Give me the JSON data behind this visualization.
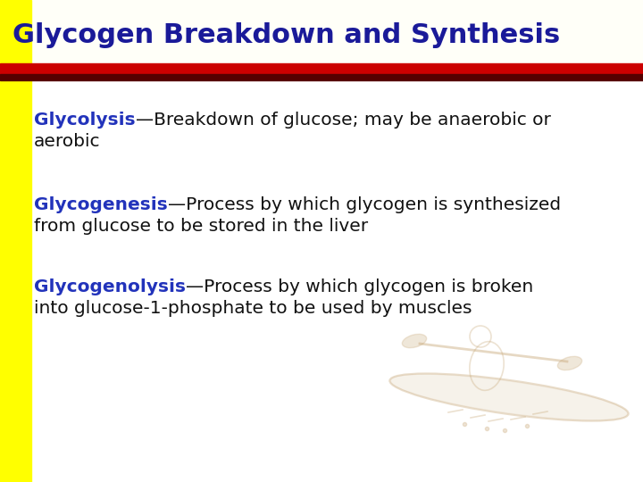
{
  "title": "Glycogen Breakdown and Synthesis",
  "title_color": "#1a1a99",
  "title_fontsize": 22,
  "red_bar_color": "#cc0000",
  "dark_bar_color": "#550000",
  "body_bg": "#ffffff",
  "header_bg": "#fffef0",
  "bullet_entries": [
    {
      "keyword": "Glycolysis",
      "keyword_color": "#2233bb",
      "rest": "—Breakdown of glucose; may be anaerobic or aerobic",
      "rest_color": "#111111",
      "line2": "aerobic",
      "wrap_after": "—Breakdown of glucose; may be anaerobic or",
      "line1_rest": "—Breakdown of glucose; may be anaerobic or",
      "line2_rest": "aerobic"
    },
    {
      "keyword": "Glycogenesis",
      "keyword_color": "#2233bb",
      "rest": "—Process by which glycogen is synthesized from glucose to be stored in the liver",
      "rest_color": "#111111",
      "line1_rest": "—Process by which glycogen is synthesized",
      "line2_rest": "from glucose to be stored in the liver"
    },
    {
      "keyword": "Glycogenolysis",
      "keyword_color": "#2233bb",
      "rest": "—Process by which glycogen is broken into glucose-1-phosphate to be used by muscles",
      "rest_color": "#111111",
      "line1_rest": "—Process by which glycogen is broken",
      "line2_rest": "into glucose-1-phosphate to be used by muscles"
    }
  ],
  "bullet_fontsize": 14.5,
  "fig_width": 7.2,
  "fig_height": 5.4,
  "dpi": 100
}
